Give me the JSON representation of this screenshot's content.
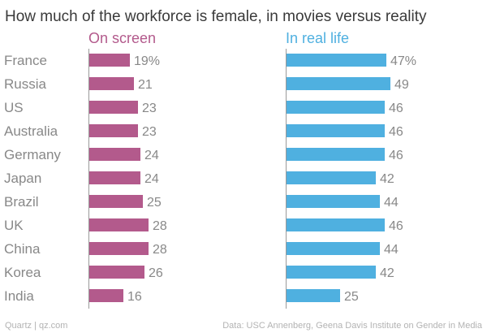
{
  "title": "How much of the workforce is female, in movies versus reality",
  "footer": {
    "credit": "Quartz | qz.com",
    "source": "Data: USC Annenberg, Geena Davis Institute on Gender in Media"
  },
  "colors": {
    "on_screen": "#b35a8c",
    "real_life": "#4fb0e0",
    "text": "#888888"
  },
  "chart_data": {
    "type": "bar",
    "orientation": "horizontal",
    "title": "How much of the workforce is female, in movies versus reality",
    "categories": [
      "France",
      "Russia",
      "US",
      "Australia",
      "Germany",
      "Japan",
      "Brazil",
      "UK",
      "China",
      "Korea",
      "India"
    ],
    "series": [
      {
        "name": "On screen",
        "values": [
          19,
          21,
          23,
          23,
          24,
          24,
          25,
          28,
          28,
          26,
          16
        ],
        "labels": [
          "19%",
          "21",
          "23",
          "23",
          "24",
          "24",
          "25",
          "28",
          "28",
          "26",
          "16"
        ]
      },
      {
        "name": "In real life",
        "values": [
          47,
          49,
          46,
          46,
          46,
          42,
          44,
          46,
          44,
          42,
          25
        ],
        "labels": [
          "47%",
          "49",
          "46",
          "46",
          "46",
          "42",
          "44",
          "46",
          "44",
          "42",
          "25"
        ]
      }
    ],
    "unit": "%",
    "xlim": [
      0,
      50
    ]
  }
}
